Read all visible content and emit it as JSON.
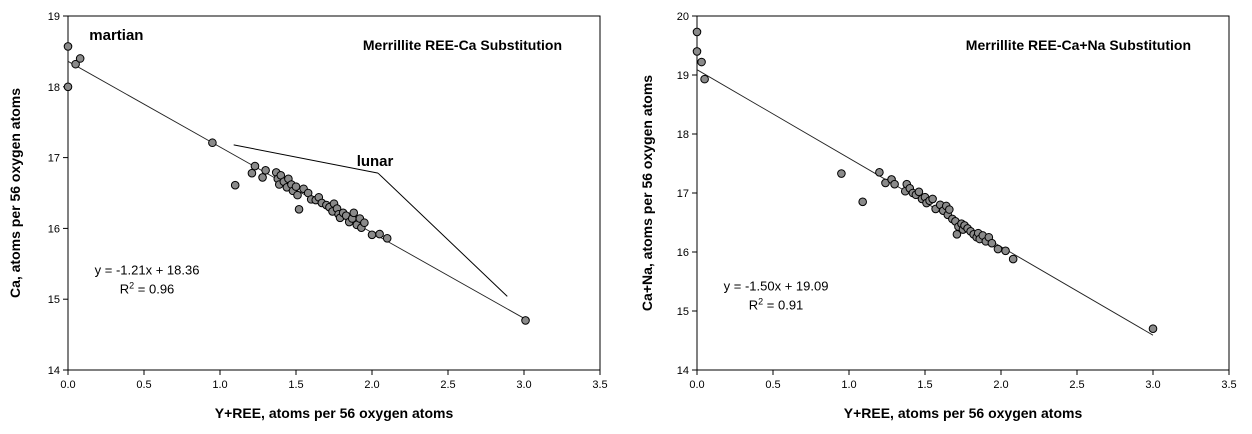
{
  "chart_data": [
    {
      "type": "scatter",
      "title": "Merrillite REE-Ca Substitution",
      "xlabel": "Y+REE, atoms per 56 oxygen atoms",
      "ylabel": "Ca, atoms per 56 oxygen atoms",
      "xlim": [
        0,
        3.5
      ],
      "ylim": [
        14,
        19
      ],
      "xticks": [
        "0.0",
        "0.5",
        "1.0",
        "1.5",
        "2.0",
        "2.5",
        "3.0",
        "3.5"
      ],
      "yticks": [
        "14",
        "15",
        "16",
        "17",
        "18",
        "19"
      ],
      "grid": false,
      "point_color": "#8a8a8a",
      "trendline": {
        "slope": -1.21,
        "intercept": 18.36,
        "x_range": [
          0,
          3.0
        ]
      },
      "equation": "y = -1.21x + 18.36",
      "r2_prefix": "R",
      "r2_sup": "2",
      "r2_value": " = 0.96",
      "annotation_martian": "martian",
      "annotation_lunar": "lunar",
      "points": [
        [
          0.0,
          18.57
        ],
        [
          0.0,
          18.0
        ],
        [
          0.05,
          18.32
        ],
        [
          0.08,
          18.4
        ],
        [
          0.95,
          17.21
        ],
        [
          1.1,
          16.61
        ],
        [
          1.21,
          16.78
        ],
        [
          1.23,
          16.88
        ],
        [
          1.28,
          16.72
        ],
        [
          1.3,
          16.82
        ],
        [
          1.37,
          16.79
        ],
        [
          1.38,
          16.7
        ],
        [
          1.39,
          16.62
        ],
        [
          1.4,
          16.75
        ],
        [
          1.42,
          16.66
        ],
        [
          1.44,
          16.58
        ],
        [
          1.45,
          16.7
        ],
        [
          1.47,
          16.62
        ],
        [
          1.48,
          16.53
        ],
        [
          1.5,
          16.59
        ],
        [
          1.51,
          16.47
        ],
        [
          1.52,
          16.27
        ],
        [
          1.55,
          16.56
        ],
        [
          1.58,
          16.5
        ],
        [
          1.6,
          16.41
        ],
        [
          1.63,
          16.4
        ],
        [
          1.65,
          16.44
        ],
        [
          1.67,
          16.36
        ],
        [
          1.7,
          16.33
        ],
        [
          1.72,
          16.3
        ],
        [
          1.74,
          16.24
        ],
        [
          1.75,
          16.35
        ],
        [
          1.77,
          16.28
        ],
        [
          1.78,
          16.2
        ],
        [
          1.79,
          16.15
        ],
        [
          1.81,
          16.22
        ],
        [
          1.83,
          16.18
        ],
        [
          1.85,
          16.09
        ],
        [
          1.87,
          16.14
        ],
        [
          1.88,
          16.22
        ],
        [
          1.9,
          16.05
        ],
        [
          1.92,
          16.14
        ],
        [
          1.93,
          16.01
        ],
        [
          1.95,
          16.08
        ],
        [
          2.0,
          15.91
        ],
        [
          2.05,
          15.92
        ],
        [
          2.1,
          15.86
        ],
        [
          3.01,
          14.7
        ]
      ]
    },
    {
      "type": "scatter",
      "title": "Merrillite REE-Ca+Na Substitution",
      "xlabel": "Y+REE, atoms per 56 oxygen atoms",
      "ylabel": "Ca+Na, atoms per 56 oxygen atoms",
      "xlim": [
        0,
        3.5
      ],
      "ylim": [
        14,
        20
      ],
      "xticks": [
        "0.0",
        "0.5",
        "1.0",
        "1.5",
        "2.0",
        "2.5",
        "3.0",
        "3.5"
      ],
      "yticks": [
        "14",
        "15",
        "16",
        "17",
        "18",
        "19",
        "20"
      ],
      "grid": false,
      "point_color": "#8a8a8a",
      "trendline": {
        "slope": -1.5,
        "intercept": 19.09,
        "x_range": [
          0,
          3.0
        ]
      },
      "equation": "y = -1.50x + 19.09",
      "r2_prefix": "R",
      "r2_sup": "2",
      "r2_value": " = 0.91",
      "points": [
        [
          0.0,
          19.73
        ],
        [
          0.0,
          19.4
        ],
        [
          0.03,
          19.22
        ],
        [
          0.05,
          18.93
        ],
        [
          0.95,
          17.33
        ],
        [
          1.09,
          16.85
        ],
        [
          1.2,
          17.35
        ],
        [
          1.24,
          17.17
        ],
        [
          1.28,
          17.23
        ],
        [
          1.3,
          17.15
        ],
        [
          1.37,
          17.03
        ],
        [
          1.38,
          17.15
        ],
        [
          1.4,
          17.08
        ],
        [
          1.42,
          17.0
        ],
        [
          1.44,
          16.97
        ],
        [
          1.46,
          17.02
        ],
        [
          1.48,
          16.9
        ],
        [
          1.5,
          16.93
        ],
        [
          1.51,
          16.83
        ],
        [
          1.53,
          16.87
        ],
        [
          1.55,
          16.9
        ],
        [
          1.57,
          16.73
        ],
        [
          1.6,
          16.8
        ],
        [
          1.62,
          16.7
        ],
        [
          1.64,
          16.78
        ],
        [
          1.65,
          16.63
        ],
        [
          1.66,
          16.72
        ],
        [
          1.68,
          16.56
        ],
        [
          1.7,
          16.52
        ],
        [
          1.71,
          16.3
        ],
        [
          1.72,
          16.43
        ],
        [
          1.74,
          16.48
        ],
        [
          1.75,
          16.38
        ],
        [
          1.76,
          16.45
        ],
        [
          1.78,
          16.4
        ],
        [
          1.8,
          16.35
        ],
        [
          1.82,
          16.3
        ],
        [
          1.84,
          16.25
        ],
        [
          1.85,
          16.32
        ],
        [
          1.86,
          16.22
        ],
        [
          1.88,
          16.28
        ],
        [
          1.9,
          16.18
        ],
        [
          1.92,
          16.25
        ],
        [
          1.94,
          16.15
        ],
        [
          1.98,
          16.05
        ],
        [
          2.03,
          16.02
        ],
        [
          2.08,
          15.88
        ],
        [
          3.0,
          14.7
        ]
      ]
    }
  ]
}
